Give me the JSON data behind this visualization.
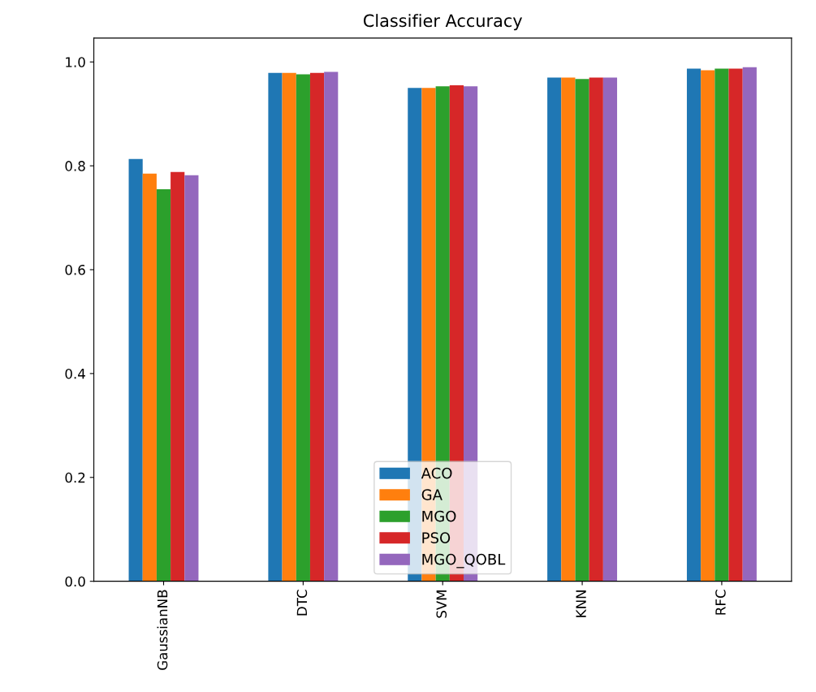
{
  "chart_data": {
    "type": "bar",
    "title": "Classifier Accuracy",
    "categories": [
      "GaussianNB",
      "DTC",
      "SVM",
      "KNN",
      "RFC"
    ],
    "series": [
      {
        "name": "ACO",
        "color": "#1f77b4",
        "values": [
          0.813,
          0.979,
          0.95,
          0.97,
          0.987
        ]
      },
      {
        "name": "GA",
        "color": "#ff7f0e",
        "values": [
          0.785,
          0.979,
          0.95,
          0.97,
          0.984
        ]
      },
      {
        "name": "MGO",
        "color": "#2ca02c",
        "values": [
          0.755,
          0.976,
          0.953,
          0.967,
          0.987
        ]
      },
      {
        "name": "PSO",
        "color": "#d62728",
        "values": [
          0.788,
          0.979,
          0.955,
          0.97,
          0.987
        ]
      },
      {
        "name": "MGO_QOBL",
        "color": "#9467bd",
        "values": [
          0.782,
          0.981,
          0.953,
          0.97,
          0.99
        ]
      }
    ],
    "ylim": [
      0,
      1.046
    ],
    "yticks": [
      {
        "value": 0,
        "label": "0.0"
      },
      0.2,
      0.4,
      0.6,
      0.8,
      {
        "value": 1,
        "label": "1.0"
      }
    ],
    "grid": false,
    "legend": "bottom"
  }
}
